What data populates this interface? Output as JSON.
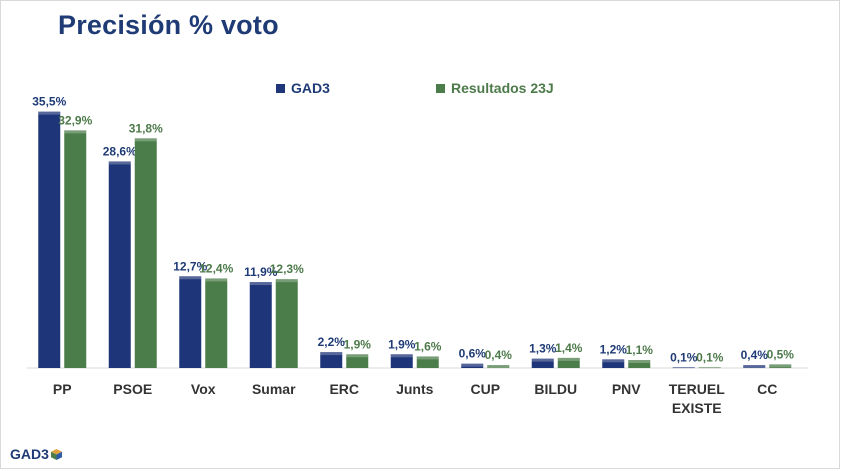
{
  "title": "Precisión % voto",
  "logo_text": "GAD3",
  "colors": {
    "series1": "#1f3579",
    "series2": "#4b7d4a",
    "label1": "#1f3b76",
    "label2": "#4d7a4a",
    "axis": "#d9d9d9",
    "category": "#333333"
  },
  "chart_data": {
    "type": "bar",
    "title": "Precisión % voto",
    "categories": [
      "PP",
      "PSOE",
      "Vox",
      "Sumar",
      "ERC",
      "Junts",
      "CUP",
      "BILDU",
      "PNV",
      "TERUEL EXISTE",
      "CC"
    ],
    "series": [
      {
        "name": "GAD3",
        "values": [
          35.5,
          28.6,
          12.7,
          11.9,
          2.2,
          1.9,
          0.6,
          1.3,
          1.2,
          0.1,
          0.4
        ],
        "labels": [
          "35,5%",
          "28,6%",
          "12,7%",
          "11,9%",
          "2,2%",
          "1,9%",
          "0,6%",
          "1,3%",
          "1,2%",
          "0,1%",
          "0,4%"
        ]
      },
      {
        "name": "Resultados 23J",
        "values": [
          32.9,
          31.8,
          12.4,
          12.3,
          1.9,
          1.6,
          0.4,
          1.4,
          1.1,
          0.1,
          0.5
        ],
        "labels": [
          "32,9%",
          "31,8%",
          "12,4%",
          "12,3%",
          "1,9%",
          "1,6%",
          "0,4%",
          "1,4%",
          "1,1%",
          "0,1%",
          "0,5%"
        ]
      }
    ],
    "xlabel": "",
    "ylabel": "",
    "ylim": [
      0,
      36
    ],
    "grid": false,
    "legend_position": "top"
  }
}
